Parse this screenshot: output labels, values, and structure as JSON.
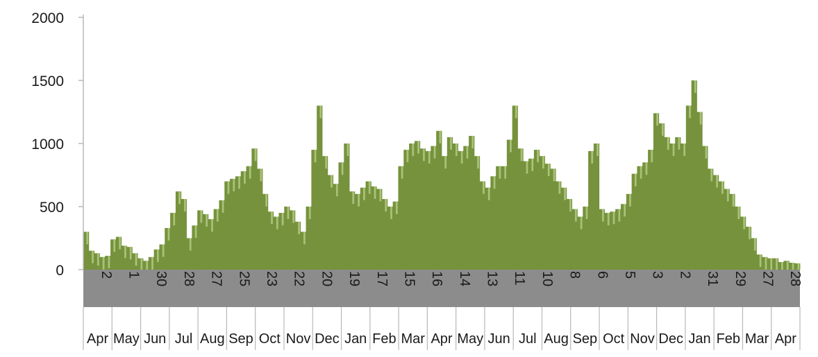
{
  "colors": {
    "bar": "#76923c",
    "bar_highlight": "#a9c27a",
    "band": "#8c8c8c",
    "axis": "#b8b8b8"
  },
  "chart_data": {
    "type": "bar",
    "title": "",
    "xlabel": "",
    "ylabel": "",
    "ylim": [
      0,
      2000
    ],
    "y_ticks": [
      "0",
      "500",
      "1000",
      "1500",
      "2000"
    ],
    "grid": false,
    "legend": "none",
    "x_day_labels": [
      "2",
      "1",
      "30",
      "28",
      "27",
      "25",
      "23",
      "22",
      "20",
      "19",
      "17",
      "15",
      "16",
      "14",
      "13",
      "11",
      "10",
      "8",
      "6",
      "5",
      "3",
      "2",
      "31",
      "29",
      "27",
      "28"
    ],
    "x_month_labels": [
      "Apr",
      "May",
      "Jun",
      "Jul",
      "Aug",
      "Sep",
      "Oct",
      "Nov",
      "Dec",
      "Jan",
      "Feb",
      "Mar",
      "Apr",
      "May",
      "Jun",
      "Jul",
      "Aug",
      "Sep",
      "Oct",
      "Nov",
      "Dec",
      "Jan",
      "Feb",
      "Mar",
      "Apr"
    ],
    "series": [
      {
        "values_description": "approximate weekly peak values, read from the chart",
        "values": [
          300,
          150,
          130,
          100,
          110,
          240,
          260,
          190,
          180,
          130,
          90,
          70,
          100,
          160,
          200,
          330,
          450,
          620,
          560,
          250,
          350,
          470,
          440,
          400,
          480,
          550,
          700,
          720,
          740,
          780,
          820,
          960,
          800,
          600,
          460,
          420,
          450,
          500,
          470,
          380,
          300,
          500,
          950,
          1300,
          900,
          750,
          680,
          850,
          1000,
          620,
          600,
          650,
          700,
          660,
          640,
          560,
          500,
          540,
          820,
          950,
          1000,
          1020,
          960,
          940,
          980,
          1100,
          900,
          1050,
          1000,
          940,
          980,
          1060,
          900,
          700,
          650,
          740,
          820,
          820,
          1030,
          1300,
          960,
          860,
          880,
          950,
          900,
          840,
          800,
          700,
          650,
          560,
          480,
          420,
          500,
          940,
          1000,
          480,
          450,
          460,
          480,
          520,
          600,
          760,
          820,
          850,
          950,
          1240,
          1160,
          1050,
          1000,
          1050,
          1000,
          1300,
          1500,
          1250,
          980,
          800,
          750,
          700,
          640,
          600,
          500,
          420,
          340,
          250,
          120,
          100,
          90,
          90,
          60,
          70,
          55,
          50
        ]
      }
    ]
  }
}
